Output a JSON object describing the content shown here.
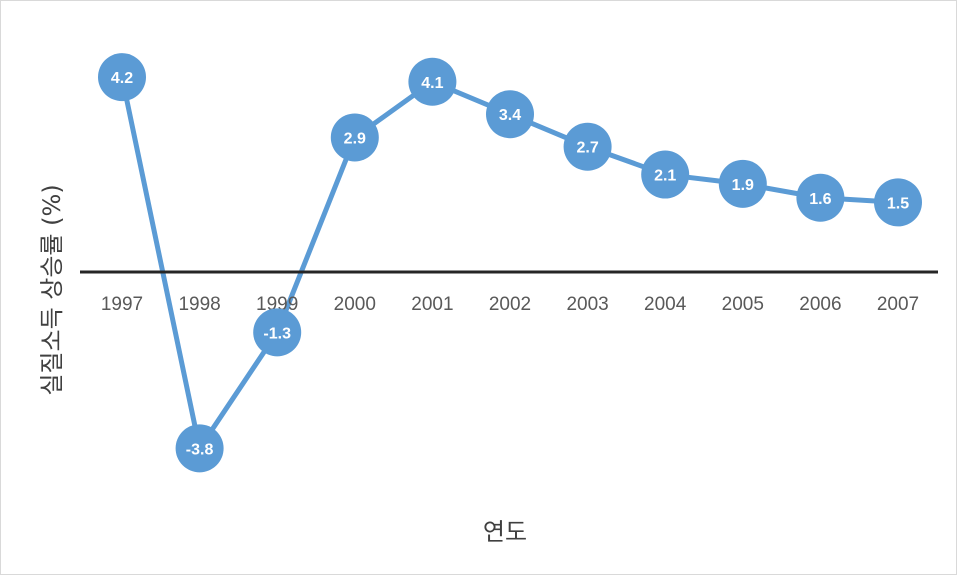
{
  "chart_data": {
    "type": "line",
    "title": "",
    "xlabel": "연도",
    "ylabel": "실질소득 상승률 (%)",
    "categories": [
      "1997",
      "1998",
      "1999",
      "2000",
      "2001",
      "2002",
      "2003",
      "2004",
      "2005",
      "2006",
      "2007"
    ],
    "series": [
      {
        "values": [
          4.2,
          -3.8,
          -1.3,
          2.9,
          4.1,
          3.4,
          2.7,
          2.1,
          1.9,
          1.6,
          1.5
        ]
      }
    ],
    "data_labels": [
      "4.2",
      "-3.8",
      "-1.3",
      "2.9",
      "4.1",
      "3.4",
      "2.7",
      "2.1",
      "1.9",
      "1.6",
      "1.5"
    ],
    "ylim": [
      -5,
      5
    ],
    "grid": false,
    "legend": "none",
    "colors": {
      "line": "#5b9bd5",
      "marker": "#5b9bd5",
      "axis": "#262626",
      "label": "#ffffff"
    }
  }
}
